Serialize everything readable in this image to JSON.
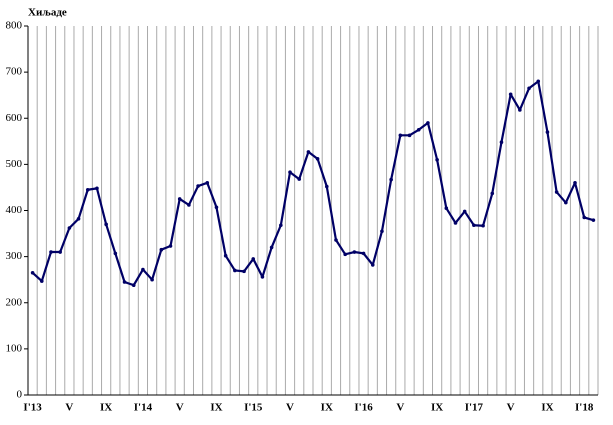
{
  "chart_data": {
    "type": "line",
    "y_label": "Хиљаде",
    "categories": [
      "I'13",
      null,
      null,
      null,
      "V",
      null,
      null,
      null,
      "IX",
      null,
      null,
      null,
      "I'14",
      null,
      null,
      null,
      "V",
      null,
      null,
      null,
      "IX",
      null,
      null,
      null,
      "I'15",
      null,
      null,
      null,
      "V",
      null,
      null,
      null,
      "IX",
      null,
      null,
      null,
      "I'16",
      null,
      null,
      null,
      "V",
      null,
      null,
      null,
      "IX",
      null,
      null,
      null,
      "I'17",
      null,
      null,
      null,
      "V",
      null,
      null,
      null,
      "IX",
      null,
      null,
      null,
      "I'18",
      null
    ],
    "values": [
      265,
      247,
      310,
      310,
      362,
      382,
      445,
      448,
      370,
      307,
      245,
      238,
      272,
      250,
      315,
      323,
      425,
      412,
      453,
      460,
      407,
      302,
      270,
      268,
      295,
      256,
      320,
      368,
      483,
      468,
      527,
      512,
      452,
      336,
      305,
      310,
      307,
      282,
      355,
      467,
      563,
      563,
      575,
      590,
      510,
      405,
      373,
      398,
      368,
      367,
      437,
      548,
      652,
      618,
      665,
      680,
      570,
      440,
      417,
      460,
      385,
      379
    ],
    "color": "#000066",
    "ylim": [
      0,
      800
    ],
    "yticks": [
      0,
      100,
      200,
      300,
      400,
      500,
      600,
      700,
      800
    ],
    "grid": "x"
  }
}
